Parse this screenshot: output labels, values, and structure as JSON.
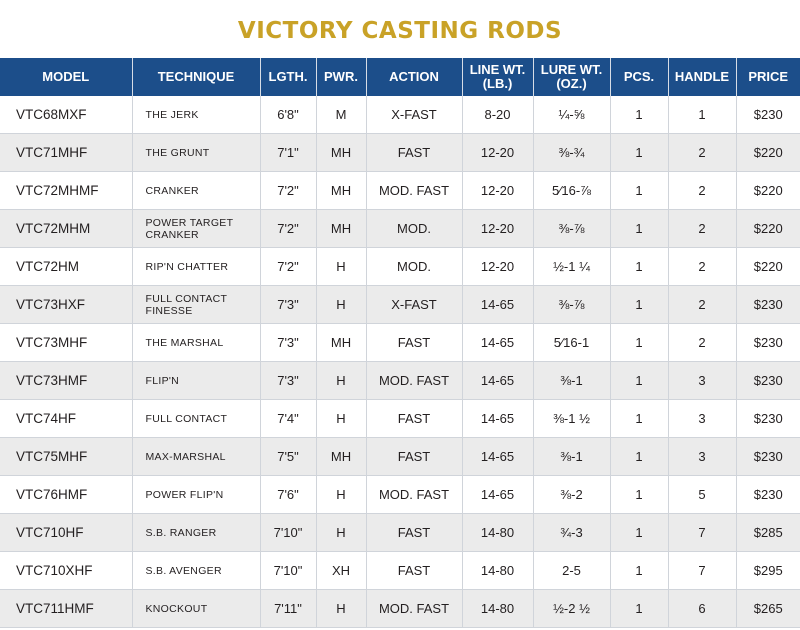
{
  "title": "VICTORY CASTING RODS",
  "headers": {
    "model": "MODEL",
    "technique": "TECHNIQUE",
    "length": "LGTH.",
    "power": "PWR.",
    "action": "ACTION",
    "line_wt_1": "LINE WT.",
    "line_wt_2": "(LB.)",
    "lure_wt_1": "LURE WT.",
    "lure_wt_2": "(OZ.)",
    "pieces": "PCS.",
    "handle": "HANDLE",
    "price": "PRICE"
  },
  "rows": [
    {
      "model": "VTC68MXF",
      "technique": "THE JERK",
      "length": "6'8\"",
      "power": "M",
      "action": "X-FAST",
      "line_wt": "8-20",
      "lure_wt": "¼-⅝",
      "pieces": "1",
      "handle": "1",
      "price": "$230"
    },
    {
      "model": "VTC71MHF",
      "technique": "THE GRUNT",
      "length": "7'1\"",
      "power": "MH",
      "action": "FAST",
      "line_wt": "12-20",
      "lure_wt": "⅜-¾",
      "pieces": "1",
      "handle": "2",
      "price": "$220"
    },
    {
      "model": "VTC72MHMF",
      "technique": "CRANKER",
      "length": "7'2\"",
      "power": "MH",
      "action": "MOD. FAST",
      "line_wt": "12-20",
      "lure_wt": "5⁄16-⅞",
      "pieces": "1",
      "handle": "2",
      "price": "$220"
    },
    {
      "model": "VTC72MHM",
      "technique": "POWER TARGET CRANKER",
      "length": "7'2\"",
      "power": "MH",
      "action": "MOD.",
      "line_wt": "12-20",
      "lure_wt": "⅜-⅞",
      "pieces": "1",
      "handle": "2",
      "price": "$220"
    },
    {
      "model": "VTC72HM",
      "technique": "RIP'N CHATTER",
      "length": "7'2\"",
      "power": "H",
      "action": "MOD.",
      "line_wt": "12-20",
      "lure_wt": "½-1 ¼",
      "pieces": "1",
      "handle": "2",
      "price": "$220"
    },
    {
      "model": "VTC73HXF",
      "technique": "FULL CONTACT FINESSE",
      "length": "7'3\"",
      "power": "H",
      "action": "X-FAST",
      "line_wt": "14-65",
      "lure_wt": "⅜-⅞",
      "pieces": "1",
      "handle": "2",
      "price": "$230"
    },
    {
      "model": "VTC73MHF",
      "technique": "THE MARSHAL",
      "length": "7'3\"",
      "power": "MH",
      "action": "FAST",
      "line_wt": "14-65",
      "lure_wt": "5⁄16-1",
      "pieces": "1",
      "handle": "2",
      "price": "$230"
    },
    {
      "model": "VTC73HMF",
      "technique": "FLIP'N",
      "length": "7'3\"",
      "power": "H",
      "action": "MOD. FAST",
      "line_wt": "14-65",
      "lure_wt": "⅜-1",
      "pieces": "1",
      "handle": "3",
      "price": "$230"
    },
    {
      "model": "VTC74HF",
      "technique": "FULL CONTACT",
      "length": "7'4\"",
      "power": "H",
      "action": "FAST",
      "line_wt": "14-65",
      "lure_wt": "⅜-1 ½",
      "pieces": "1",
      "handle": "3",
      "price": "$230"
    },
    {
      "model": "VTC75MHF",
      "technique": "MAX-MARSHAL",
      "length": "7'5\"",
      "power": "MH",
      "action": "FAST",
      "line_wt": "14-65",
      "lure_wt": "⅜-1",
      "pieces": "1",
      "handle": "3",
      "price": "$230"
    },
    {
      "model": "VTC76HMF",
      "technique": "POWER FLIP'N",
      "length": "7'6\"",
      "power": "H",
      "action": "MOD. FAST",
      "line_wt": "14-65",
      "lure_wt": "⅜-2",
      "pieces": "1",
      "handle": "5",
      "price": "$230"
    },
    {
      "model": "VTC710HF",
      "technique": "S.B. RANGER",
      "length": "7'10\"",
      "power": "H",
      "action": "FAST",
      "line_wt": "14-80",
      "lure_wt": "¾-3",
      "pieces": "1",
      "handle": "7",
      "price": "$285"
    },
    {
      "model": "VTC710XHF",
      "technique": "S.B. AVENGER",
      "length": "7'10\"",
      "power": "XH",
      "action": "FAST",
      "line_wt": "14-80",
      "lure_wt": "2-5",
      "pieces": "1",
      "handle": "7",
      "price": "$295"
    },
    {
      "model": "VTC711HMF",
      "technique": "KNOCKOUT",
      "length": "7'11\"",
      "power": "H",
      "action": "MOD. FAST",
      "line_wt": "14-80",
      "lure_wt": "½-2 ½",
      "pieces": "1",
      "handle": "6",
      "price": "$265"
    }
  ],
  "colors": {
    "title": "#c9a227",
    "header_bg": "#1c4e8a",
    "stripe": "#ebebeb"
  }
}
